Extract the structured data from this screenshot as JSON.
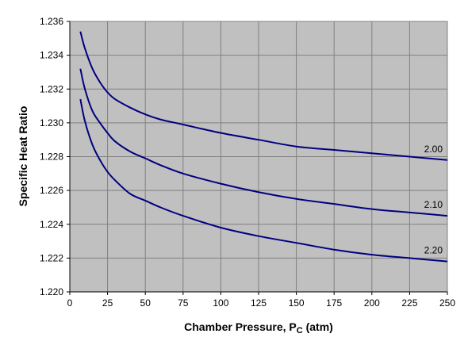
{
  "chart_data": {
    "type": "line",
    "title": "",
    "xlabel": "Chamber Pressure, P",
    "xlabel_subscript": "C",
    "xlabel_unit": " (atm)",
    "ylabel": "Specific Heat Ratio",
    "xlim": [
      0,
      250
    ],
    "ylim": [
      1.22,
      1.236
    ],
    "xticks": [
      0,
      25,
      50,
      75,
      100,
      125,
      150,
      175,
      200,
      225,
      250
    ],
    "yticks": [
      "1.220",
      "1.222",
      "1.224",
      "1.226",
      "1.228",
      "1.230",
      "1.232",
      "1.234",
      "1.236"
    ],
    "grid": true,
    "legend": "none",
    "plot_background": "#c0c0c0",
    "line_color": "#000080",
    "series": [
      {
        "name": "2.00",
        "x": [
          7,
          10,
          15,
          20,
          25,
          30,
          40,
          50,
          60,
          75,
          100,
          125,
          150,
          175,
          200,
          225,
          250
        ],
        "values": [
          1.2354,
          1.2344,
          1.2332,
          1.2324,
          1.2318,
          1.2314,
          1.2309,
          1.2305,
          1.2302,
          1.2299,
          1.2294,
          1.229,
          1.2286,
          1.2284,
          1.2282,
          1.228,
          1.2278
        ]
      },
      {
        "name": "2.10",
        "x": [
          7,
          10,
          15,
          20,
          25,
          30,
          40,
          50,
          60,
          75,
          100,
          125,
          150,
          175,
          200,
          225,
          250
        ],
        "values": [
          1.2332,
          1.232,
          1.2307,
          1.23,
          1.2294,
          1.2289,
          1.2283,
          1.2279,
          1.2275,
          1.227,
          1.2264,
          1.2259,
          1.2255,
          1.2252,
          1.2249,
          1.2247,
          1.2245
        ]
      },
      {
        "name": "2.20",
        "x": [
          7,
          10,
          15,
          20,
          25,
          30,
          40,
          50,
          60,
          75,
          100,
          125,
          150,
          175,
          200,
          225,
          250
        ],
        "values": [
          1.2314,
          1.2301,
          1.2287,
          1.2278,
          1.2271,
          1.2266,
          1.2258,
          1.2254,
          1.225,
          1.2245,
          1.2238,
          1.2233,
          1.2229,
          1.2225,
          1.2222,
          1.222,
          1.2218
        ]
      }
    ]
  }
}
